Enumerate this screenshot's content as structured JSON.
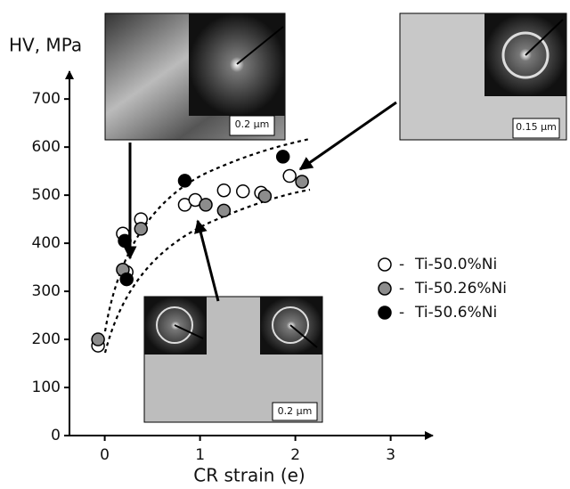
{
  "chart_data": {
    "type": "scatter",
    "y_label": "HV, MPa",
    "x_label": "CR strain (e)",
    "xlim": [
      -0.37,
      3.48
    ],
    "ylim": [
      0,
      767
    ],
    "xticks": [
      0,
      1,
      2,
      3
    ],
    "yticks": [
      0,
      100,
      200,
      300,
      400,
      500,
      600,
      700
    ],
    "series": [
      {
        "name": "Ti-50.0%Ni",
        "color": "#ffffff",
        "x": [
          -0.07,
          0.23,
          0.19,
          0.38,
          0.84,
          0.95,
          1.25,
          1.45,
          1.64,
          1.94
        ],
        "values": [
          187,
          340,
          420,
          450,
          480,
          490,
          510,
          508,
          505,
          540
        ]
      },
      {
        "name": "Ti-50.26%Ni",
        "color": "#8c8c8c",
        "x": [
          -0.07,
          0.19,
          0.38,
          1.06,
          1.25,
          1.68,
          2.07
        ],
        "values": [
          200,
          345,
          430,
          480,
          468,
          498,
          528
        ]
      },
      {
        "name": "Ti-50.6%Ni",
        "color": "#000000",
        "x": [
          0.23,
          0.21,
          0.84,
          1.87
        ],
        "values": [
          325,
          405,
          530,
          580
        ]
      }
    ],
    "scale_bars": [
      "0.2 μm",
      "0.15 μm",
      "0.2 μm"
    ]
  }
}
